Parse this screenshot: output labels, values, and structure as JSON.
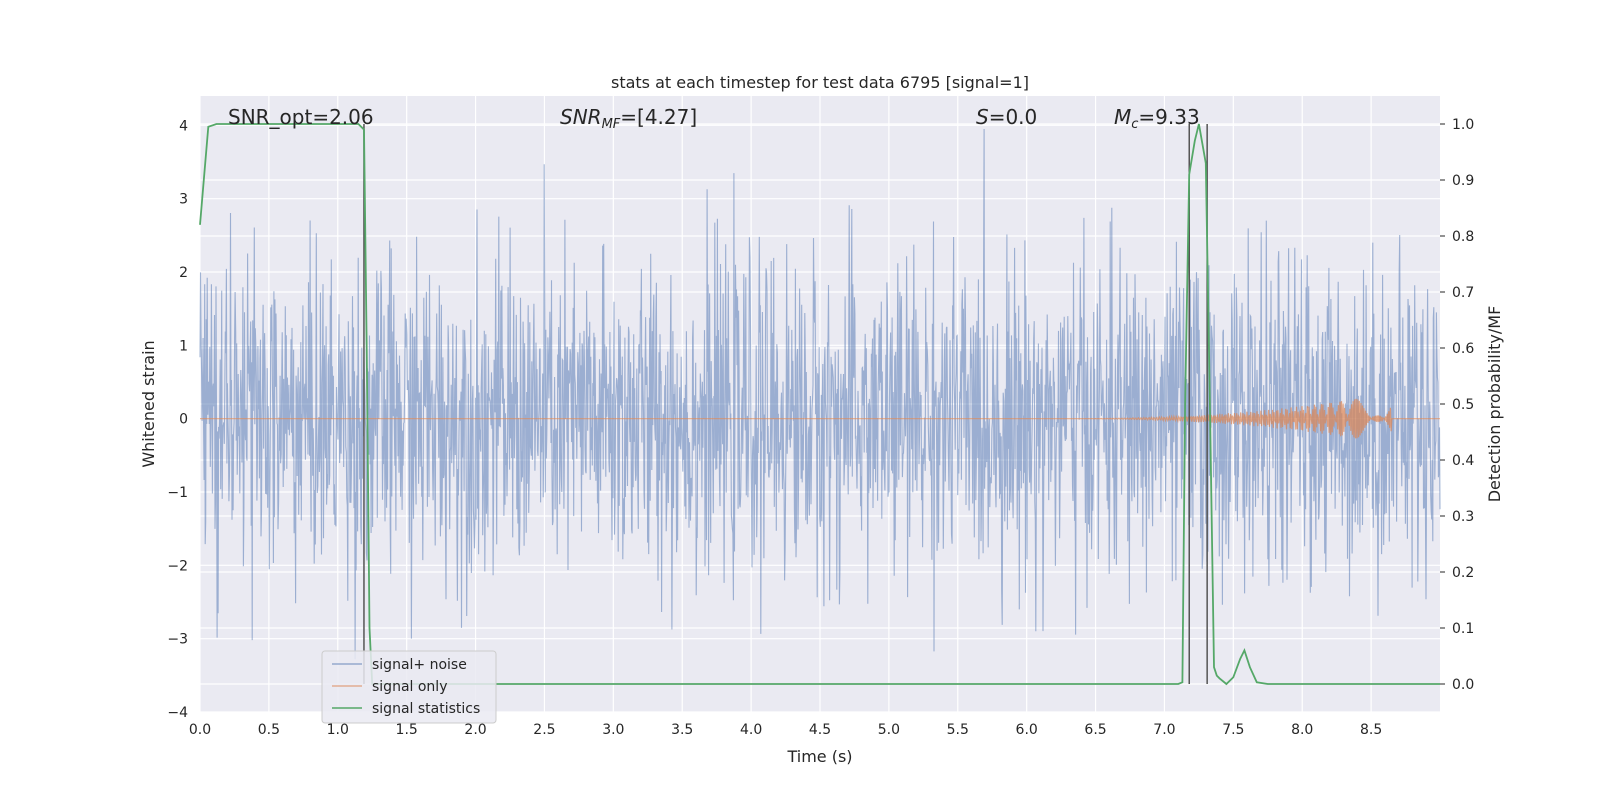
{
  "chart_data": {
    "type": "line",
    "title": "stats at each timestep for test data 6795 [signal=1]",
    "xlabel": "Time (s)",
    "ylabel_left": "Whitened strain",
    "ylabel_right": "Detection probability/MF",
    "xlim": [
      0.0,
      9.0
    ],
    "ylim_left": [
      -4.0,
      4.4
    ],
    "ylim_right": [
      -0.05,
      1.05
    ],
    "x_ticks": [
      "0.0",
      "0.5",
      "1.0",
      "1.5",
      "2.0",
      "2.5",
      "3.0",
      "3.5",
      "4.0",
      "4.5",
      "5.0",
      "5.5",
      "6.0",
      "6.5",
      "7.0",
      "7.5",
      "8.0",
      "8.5"
    ],
    "y_ticks_left": [
      "4",
      "3",
      "2",
      "1",
      "0",
      "−1",
      "−2",
      "−3",
      "−4"
    ],
    "y_ticks_right": [
      "1.0",
      "0.9",
      "0.8",
      "0.7",
      "0.6",
      "0.5",
      "0.4",
      "0.3",
      "0.2",
      "0.1",
      "0.0"
    ],
    "grid": true,
    "legend_position": "lower-left",
    "annotations": [
      {
        "id": "snr_opt",
        "text": "SNR_opt=2.06"
      },
      {
        "id": "snr_mf",
        "main": "SNR",
        "sub": "MF",
        "rest": "=[4.27]"
      },
      {
        "id": "s",
        "main": "S",
        "rest": "=0.0"
      },
      {
        "id": "mc",
        "main": "M",
        "sub": "c",
        "rest": "=9.33"
      }
    ],
    "series": [
      {
        "name": "signal+ noise",
        "color": "#4c72b0",
        "axis": "left",
        "note_only": "dense noise, roughly within ±2.5 with spikes up to ±4"
      },
      {
        "name": "signal only",
        "color": "#dd8452",
        "axis": "left",
        "chirp_start": 6.3,
        "chirp_end": 8.65,
        "peak_amplitude": 0.35
      },
      {
        "name": "signal statistics",
        "color": "#55a868",
        "axis": "right",
        "x": [
          0.0,
          0.06,
          0.12,
          0.2,
          0.4,
          0.6,
          0.8,
          1.0,
          1.1,
          1.15,
          1.19,
          1.21,
          1.23,
          1.25,
          1.3,
          2.0,
          3.0,
          4.0,
          5.0,
          6.0,
          6.8,
          7.1,
          7.13,
          7.15,
          7.18,
          7.22,
          7.25,
          7.3,
          7.33,
          7.36,
          7.38,
          7.4,
          7.45,
          7.5,
          7.55,
          7.58,
          7.62,
          7.67,
          7.75,
          8.0,
          8.5,
          9.0
        ],
        "y": [
          0.82,
          0.995,
          1.0,
          1.0,
          1.0,
          1.0,
          1.0,
          1.0,
          1.0,
          1.0,
          0.99,
          0.6,
          0.1,
          0.0,
          0.0,
          0.0,
          0.0,
          0.0,
          0.0,
          0.0,
          0.0,
          0.0,
          0.003,
          0.5,
          0.91,
          0.97,
          1.0,
          0.93,
          0.5,
          0.03,
          0.015,
          0.01,
          0.0,
          0.012,
          0.045,
          0.06,
          0.03,
          0.003,
          0.0,
          0.0,
          0.0,
          0.0
        ]
      }
    ],
    "vertical_lines_x": [
      1.19,
      7.18,
      7.31
    ]
  }
}
